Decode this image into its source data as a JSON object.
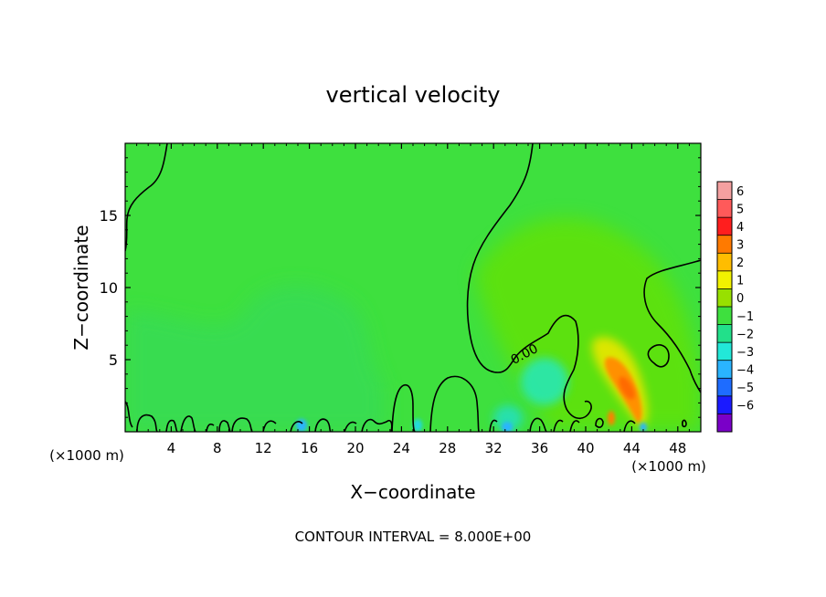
{
  "chart_data": {
    "type": "heatmap",
    "title": "vertical velocity",
    "xlabel": "X−coordinate",
    "ylabel": "Z−coordinate",
    "x_unit_left": "(×1000 m)",
    "x_unit_right": "(×1000 m)",
    "footer": "CONTOUR INTERVAL = 8.000E+00",
    "contour_label": "0.00",
    "xlim": [
      0,
      50
    ],
    "ylim": [
      0,
      20
    ],
    "x_ticks": [
      4,
      8,
      12,
      16,
      20,
      24,
      28,
      32,
      36,
      40,
      44,
      48
    ],
    "x_tick_labels": [
      "4",
      "8",
      "12",
      "16",
      "20",
      "24",
      "28",
      "32",
      "36",
      "40",
      "44",
      "48"
    ],
    "y_ticks": [
      5,
      10,
      15
    ],
    "y_tick_labels": [
      "5",
      "10",
      "15"
    ],
    "colorbar": {
      "levels": [
        6,
        5,
        4,
        3,
        2,
        1,
        0,
        -1,
        -2,
        -3,
        -4,
        -5,
        -6
      ],
      "labels": [
        "6",
        "5",
        "4",
        "3",
        "2",
        "1",
        "0",
        "−1",
        "−2",
        "−3",
        "−4",
        "−5",
        "−6"
      ],
      "colors": [
        "#f4a0a0",
        "#ff5a5a",
        "#ff1e1e",
        "#ff7a00",
        "#ffbd00",
        "#f2f200",
        "#98e000",
        "#3ee03e",
        "#22e08a",
        "#22e8d8",
        "#2ab4ff",
        "#1e6cff",
        "#1a1aff",
        "#7a00c8"
      ]
    }
  }
}
